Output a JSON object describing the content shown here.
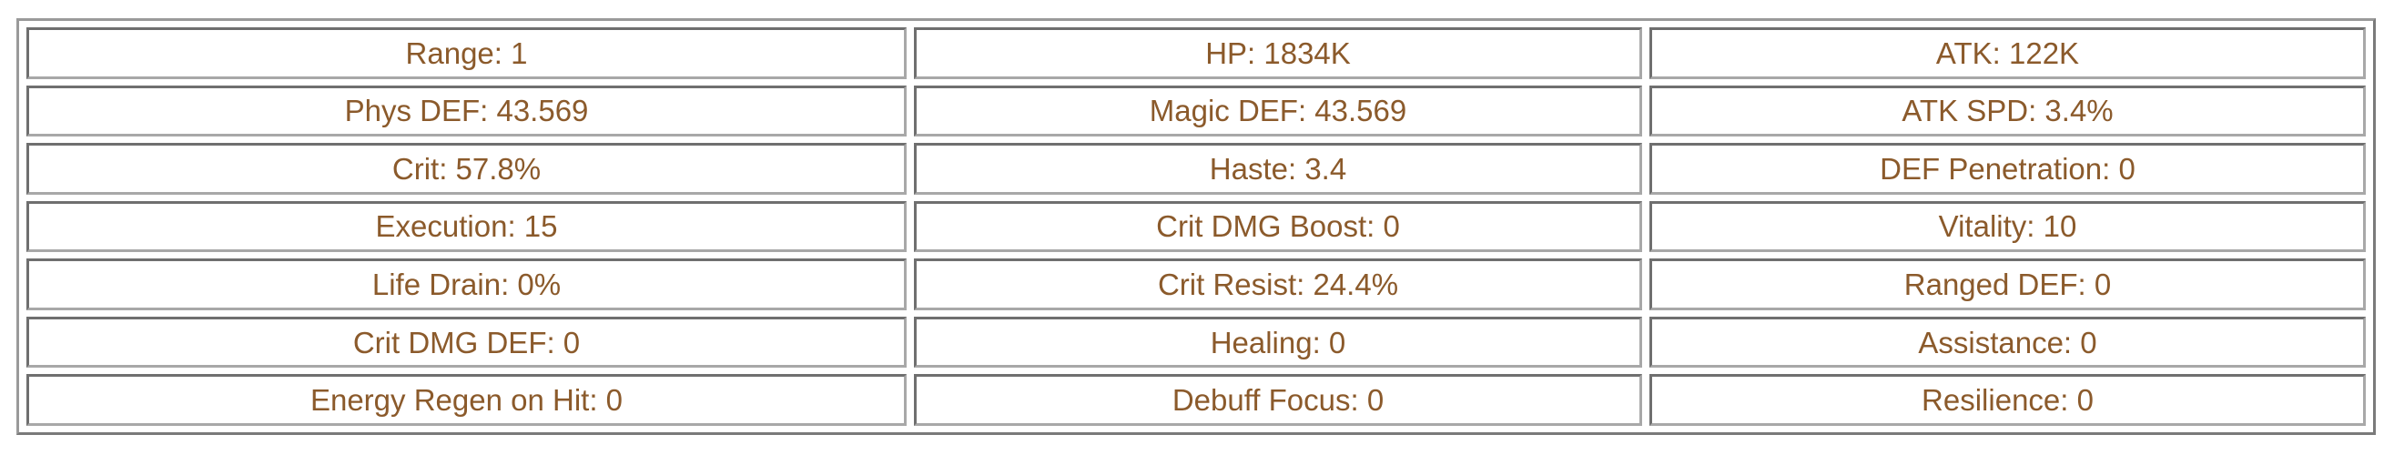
{
  "stats_table": {
    "text_color": "#8b5a2b",
    "rows": [
      [
        "Range: 1",
        "HP: 1834K",
        "ATK: 122K"
      ],
      [
        "Phys DEF: 43.569",
        "Magic DEF: 43.569",
        "ATK SPD: 3.4%"
      ],
      [
        "Crit: 57.8%",
        "Haste: 3.4",
        "DEF Penetration: 0"
      ],
      [
        "Execution: 15",
        "Crit DMG Boost: 0",
        "Vitality: 10"
      ],
      [
        "Life Drain: 0%",
        "Crit Resist: 24.4%",
        "Ranged DEF: 0"
      ],
      [
        "Crit DMG DEF: 0",
        "Healing: 0",
        "Assistance: 0"
      ],
      [
        "Energy Regen on Hit: 0",
        "Debuff Focus: 0",
        "Resilience: 0"
      ]
    ]
  }
}
